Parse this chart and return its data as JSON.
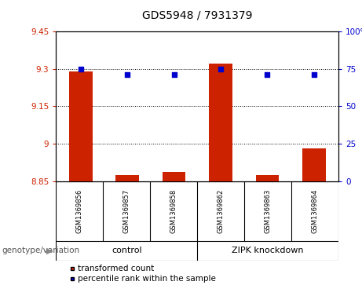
{
  "title": "GDS5948 / 7931379",
  "samples": [
    "GSM1369856",
    "GSM1369857",
    "GSM1369858",
    "GSM1369862",
    "GSM1369863",
    "GSM1369864"
  ],
  "group_labels": [
    "control",
    "ZIPK knockdown"
  ],
  "bar_values": [
    9.29,
    8.875,
    8.885,
    9.32,
    8.875,
    8.98
  ],
  "bar_bottom": 8.85,
  "dot_values": [
    75,
    71,
    71,
    75,
    71,
    71
  ],
  "ylim_left": [
    8.85,
    9.45
  ],
  "ylim_right": [
    0,
    100
  ],
  "yticks_left": [
    8.85,
    9.0,
    9.15,
    9.3,
    9.45
  ],
  "ytick_labels_left": [
    "8.85",
    "9",
    "9.15",
    "9.3",
    "9.45"
  ],
  "yticks_right": [
    0,
    25,
    50,
    75,
    100
  ],
  "ytick_labels_right": [
    "0",
    "25",
    "50",
    "75",
    "100%"
  ],
  "bar_color": "#cc2200",
  "dot_color": "#0000cc",
  "bg_color": "#ffffff",
  "plot_bg": "white",
  "legend_bar_label": "transformed count",
  "legend_dot_label": "percentile rank within the sample",
  "xlabel_label": "genotype/variation",
  "group_bg_color": "#66ee66",
  "sample_bg_color": "#c8c8c8"
}
